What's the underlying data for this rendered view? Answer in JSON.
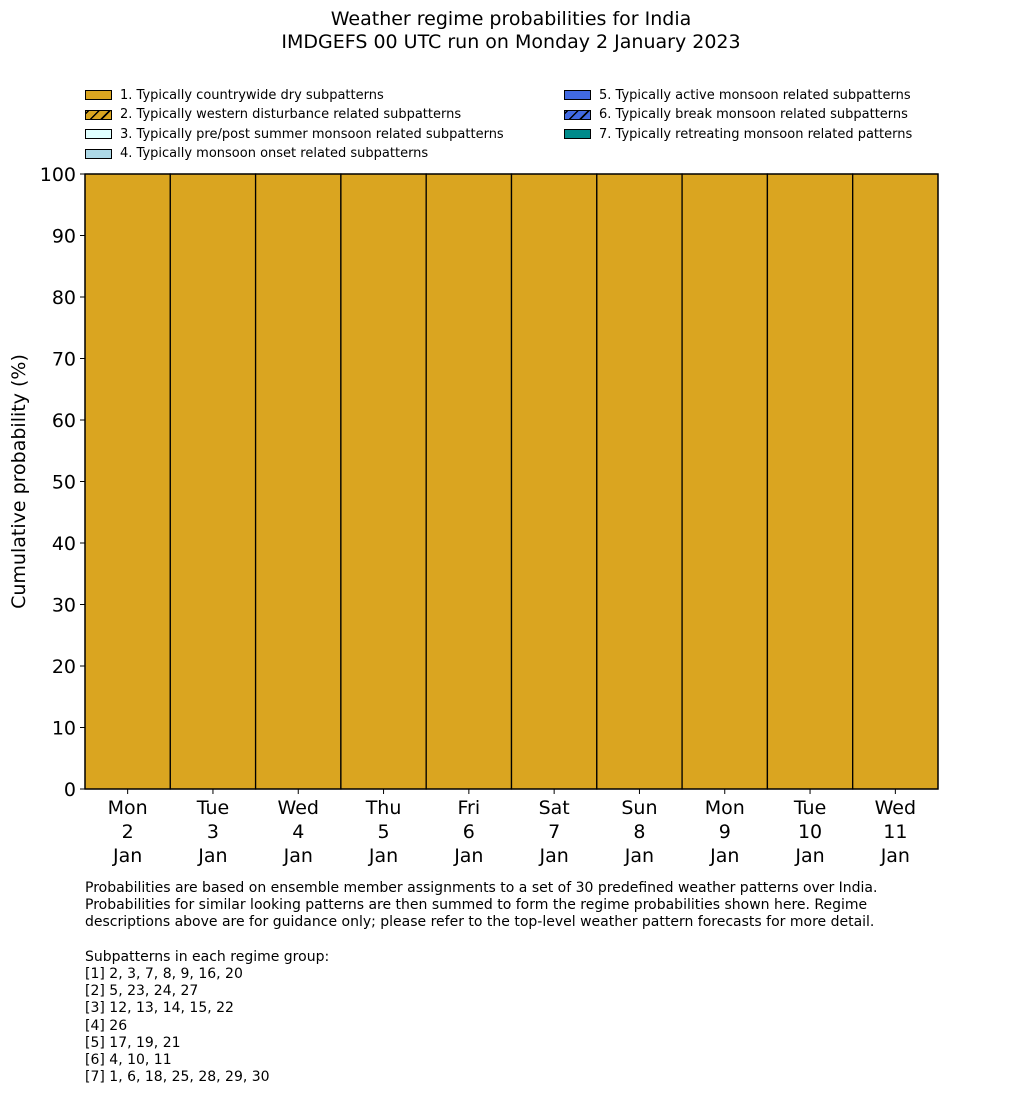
{
  "chart_data": {
    "type": "bar",
    "stacked": true,
    "title": "Weather regime probabilities for India",
    "subtitle": "IMDGEFS 00 UTC run on Monday 2 January 2023",
    "ylabel": "Cumulative probability (%)",
    "xlabel": "",
    "ylim": [
      0,
      100
    ],
    "yticks": [
      0,
      10,
      20,
      30,
      40,
      50,
      60,
      70,
      80,
      90,
      100
    ],
    "grid": false,
    "legend_placement": "top",
    "categories": [
      [
        "Mon",
        "2",
        "Jan"
      ],
      [
        "Tue",
        "3",
        "Jan"
      ],
      [
        "Wed",
        "4",
        "Jan"
      ],
      [
        "Thu",
        "5",
        "Jan"
      ],
      [
        "Fri",
        "6",
        "Jan"
      ],
      [
        "Sat",
        "7",
        "Jan"
      ],
      [
        "Sun",
        "8",
        "Jan"
      ],
      [
        "Mon",
        "9",
        "Jan"
      ],
      [
        "Tue",
        "10",
        "Jan"
      ],
      [
        "Wed",
        "11",
        "Jan"
      ]
    ],
    "series": [
      {
        "name": "1. Typically countrywide dry subpatterns",
        "color": "#DAA520",
        "hatch": false,
        "values": [
          100,
          100,
          100,
          100,
          100,
          100,
          100,
          100,
          100,
          100
        ]
      },
      {
        "name": "2. Typically western disturbance related subpatterns",
        "color": "#DAA520",
        "hatch": true,
        "values": [
          0,
          0,
          0,
          0,
          0,
          0,
          0,
          0,
          0,
          0
        ]
      },
      {
        "name": "3. Typically pre/post summer monsoon related subpatterns",
        "color": "#E0FFFF",
        "hatch": false,
        "values": [
          0,
          0,
          0,
          0,
          0,
          0,
          0,
          0,
          0,
          0
        ]
      },
      {
        "name": "4. Typically monsoon onset related subpatterns",
        "color": "#ADD8E6",
        "hatch": false,
        "values": [
          0,
          0,
          0,
          0,
          0,
          0,
          0,
          0,
          0,
          0
        ]
      },
      {
        "name": "5. Typically active monsoon related subpatterns",
        "color": "#4169E1",
        "hatch": false,
        "values": [
          0,
          0,
          0,
          0,
          0,
          0,
          0,
          0,
          0,
          0
        ]
      },
      {
        "name": "6. Typically break monsoon related subpatterns",
        "color": "#4169E1",
        "hatch": true,
        "values": [
          0,
          0,
          0,
          0,
          0,
          0,
          0,
          0,
          0,
          0
        ]
      },
      {
        "name": "7. Typically retreating monsoon related patterns",
        "color": "#008B8B",
        "hatch": false,
        "values": [
          0,
          0,
          0,
          0,
          0,
          0,
          0,
          0,
          0,
          0
        ]
      }
    ]
  },
  "notes": {
    "text": "Probabilities are based on ensemble member assignments to a set of 30 predefined weather patterns over India.\nProbabilities for similar looking patterns are then summed to form the regime probabilities shown here. Regime\ndescriptions above are for guidance only; please refer to the top-level weather pattern forecasts for more detail.\n\nSubpatterns in each regime group:\n[1] 2, 3, 7, 8, 9, 16, 20\n[2] 5, 23, 24, 27\n[3] 12, 13, 14, 15, 22\n[4] 26\n[5] 17, 19, 21\n[6] 4, 10, 11\n[7] 1, 6, 18, 25, 28, 29, 30"
  }
}
